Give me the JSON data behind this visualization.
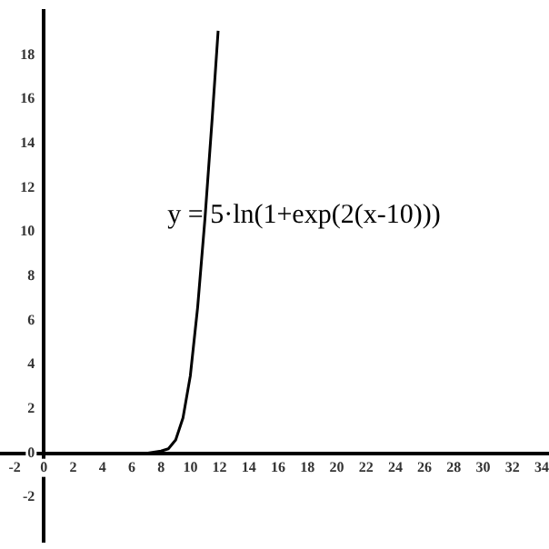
{
  "chart_data": {
    "type": "line",
    "x": [
      2,
      4,
      6,
      7,
      8,
      8.5,
      9,
      9.5,
      10,
      10.5,
      11,
      11.5,
      11.9
    ],
    "values": [
      0,
      0,
      0,
      0,
      0.1,
      0.2,
      0.6,
      1.6,
      3.5,
      6.6,
      10.6,
      15.2,
      19.1
    ],
    "color": "#000000",
    "marker": "none",
    "line_style": "solid",
    "grid": false,
    "legend": false,
    "xlim": [
      -3,
      34.5
    ],
    "ylim": [
      -4,
      20
    ],
    "xticks": [
      -2,
      0,
      2,
      4,
      6,
      8,
      10,
      12,
      14,
      16,
      18,
      20,
      22,
      24,
      26,
      28,
      30,
      32,
      34
    ],
    "yticks": [
      -2,
      0,
      2,
      4,
      6,
      8,
      10,
      12,
      14,
      16,
      18
    ],
    "annotations": [
      "y = 5·ln(1+exp(2(x-10)))"
    ]
  }
}
